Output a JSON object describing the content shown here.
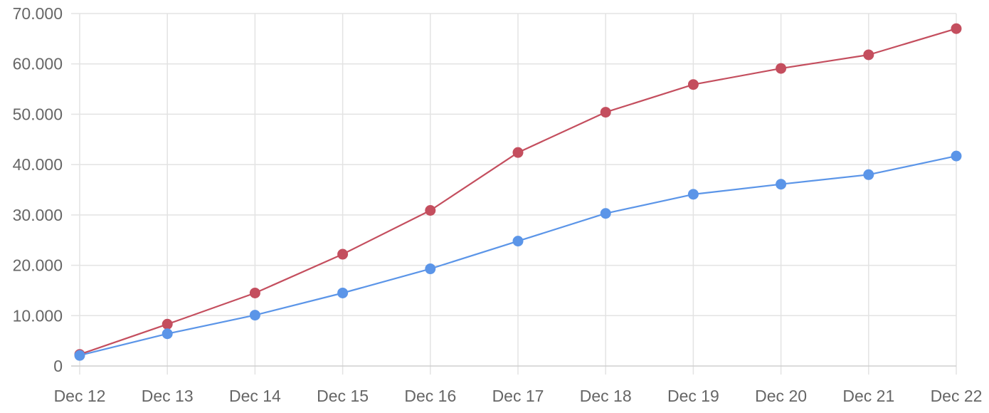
{
  "chart_data": {
    "type": "line",
    "title": "",
    "xlabel": "",
    "ylabel": "",
    "categories": [
      "Dec 12",
      "Dec 13",
      "Dec 14",
      "Dec 15",
      "Dec 16",
      "Dec 17",
      "Dec 18",
      "Dec 19",
      "Dec 20",
      "Dec 21",
      "Dec 22"
    ],
    "ylim": [
      0,
      70000
    ],
    "yticks": [
      0,
      10000,
      20000,
      30000,
      40000,
      50000,
      60000,
      70000
    ],
    "ytick_labels": [
      "0",
      "10.000",
      "20.000",
      "30.000",
      "40.000",
      "50.000",
      "60.000",
      "70.000"
    ],
    "grid": true,
    "legend": "none",
    "series": [
      {
        "color": "#c44e5e",
        "values": [
          2300,
          8300,
          14500,
          22200,
          30900,
          42400,
          50400,
          55900,
          59100,
          61800,
          67000
        ]
      },
      {
        "color": "#5b95e8",
        "values": [
          2100,
          6400,
          10100,
          14500,
          19300,
          24800,
          30300,
          34100,
          36100,
          38000,
          41700
        ]
      }
    ]
  }
}
